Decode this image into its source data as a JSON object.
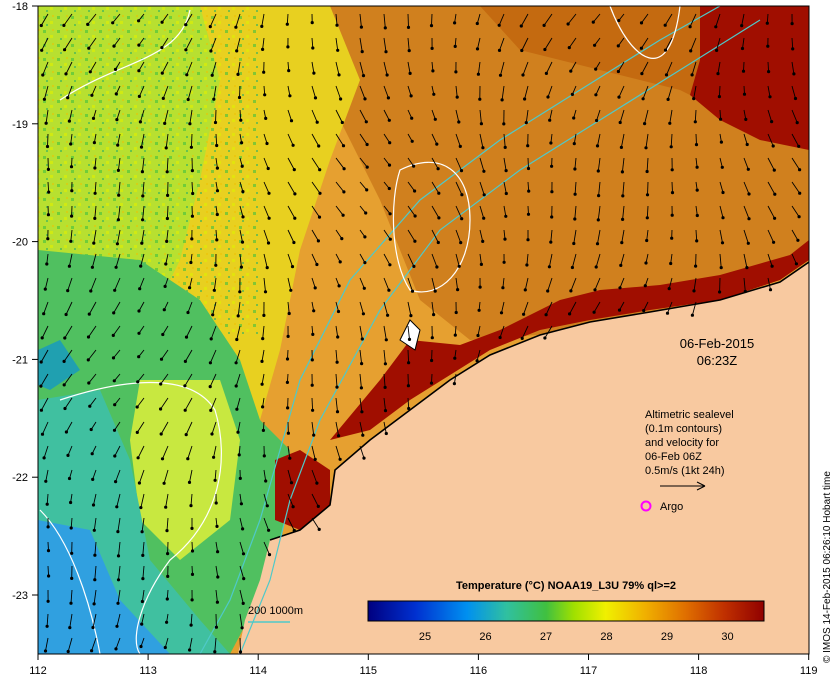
{
  "map": {
    "lon_ticks": [
      "112",
      "113",
      "114",
      "115",
      "116",
      "117",
      "118",
      "119"
    ],
    "lat_ticks": [
      "-18",
      "-19",
      "-20",
      "-21",
      "-22",
      "-23"
    ]
  },
  "timestamp": {
    "date": "06-Feb-2015",
    "time": "06:23Z"
  },
  "altimetry_note": {
    "line1": "Altimetric sealevel",
    "line2": "(0.1m contours)",
    "line3": "and velocity for",
    "line4": "06-Feb 06Z",
    "line5": "0.5m/s (1kt 24h)"
  },
  "argo": {
    "label": "Argo",
    "color": "#ff00ff"
  },
  "depth_legend": {
    "label": "200  1000m",
    "color": "#4fc9c9"
  },
  "colorbar": {
    "title": "Temperature (°C) NOAA19_L3U 79% ql>=2",
    "ticks": [
      "25",
      "26",
      "27",
      "28",
      "29",
      "30"
    ]
  },
  "credit": "© IMOS 14-Feb-2015 06:26:10 Hobart time",
  "colors": {
    "land": "#f8c9a0",
    "sst_low": "#0030ff",
    "sst_mid": "#e8f000",
    "sst_high": "#a00000"
  }
}
